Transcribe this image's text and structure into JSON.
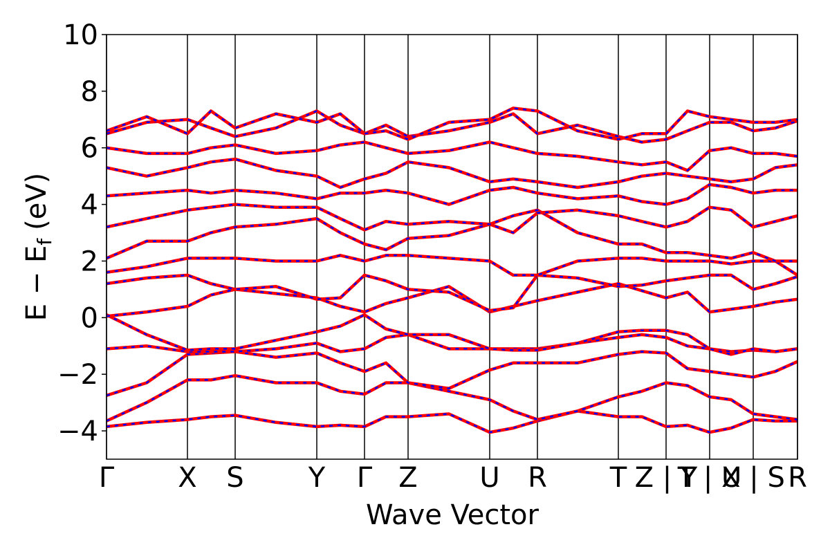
{
  "chart_data": {
    "type": "line",
    "xlabel": "Wave Vector",
    "ylabel": {
      "main": "E − E",
      "sub": "f",
      "unit": "(eV)"
    },
    "xlim": [
      0,
      999
    ],
    "ylim": [
      -5,
      10
    ],
    "xticks": [
      {
        "value": 0,
        "label": "Γ"
      },
      {
        "value": 117,
        "label": "X"
      },
      {
        "value": 186,
        "label": "S"
      },
      {
        "value": 304,
        "label": "Y"
      },
      {
        "value": 373,
        "label": "Γ"
      },
      {
        "value": 436,
        "label": "Z"
      },
      {
        "value": 554,
        "label": "U"
      },
      {
        "value": 623,
        "label": "R"
      },
      {
        "value": 740,
        "label": "T"
      },
      {
        "value": 809,
        "label": "Z | Y"
      },
      {
        "value": 872,
        "label": "T | U"
      },
      {
        "value": 935,
        "label": "X | S"
      },
      {
        "value": 999,
        "label": "R"
      }
    ],
    "yticks": [
      {
        "value": -4,
        "label": "−4"
      },
      {
        "value": -2,
        "label": "−2"
      },
      0,
      2,
      4,
      6,
      8,
      10
    ],
    "x": [
      0,
      58,
      117,
      151,
      186,
      245,
      304,
      338,
      373,
      404,
      436,
      495,
      554,
      588,
      623,
      681,
      740,
      774,
      809,
      840,
      872,
      903,
      935,
      967,
      999
    ],
    "line_color": "#ff0000",
    "overlay_color": "#0000ff",
    "series": [
      {
        "values": [
          -3.85,
          -3.7,
          -3.6,
          -3.5,
          -3.45,
          -3.7,
          -3.85,
          -3.8,
          -3.85,
          -3.5,
          -3.5,
          -3.4,
          -4.05,
          -3.9,
          -3.65,
          -3.3,
          -3.5,
          -3.5,
          -3.85,
          -3.8,
          -4.05,
          -3.9,
          -3.6,
          -3.65,
          -3.65
        ]
      },
      {
        "values": [
          -3.65,
          -3.0,
          -2.2,
          -2.2,
          -2.05,
          -2.3,
          -2.3,
          -2.6,
          -2.7,
          -2.3,
          -2.3,
          -2.6,
          -2.9,
          -3.3,
          -3.6,
          -3.3,
          -2.8,
          -2.6,
          -2.3,
          -2.4,
          -2.8,
          -2.9,
          -3.4,
          -3.5,
          -3.6
        ]
      },
      {
        "values": [
          -2.75,
          -2.3,
          -1.3,
          -1.25,
          -1.2,
          -1.4,
          -1.25,
          -1.6,
          -1.9,
          -1.6,
          -2.3,
          -2.5,
          -1.85,
          -1.6,
          -1.6,
          -1.6,
          -1.3,
          -1.2,
          -1.25,
          -1.8,
          -1.9,
          -2.0,
          -2.1,
          -1.9,
          -1.55
        ]
      },
      {
        "values": [
          -1.1,
          -1.0,
          -1.2,
          -1.2,
          -1.2,
          -1.1,
          -0.9,
          -1.2,
          -1.1,
          -0.7,
          -0.6,
          -1.1,
          -1.1,
          -1.1,
          -1.1,
          -0.9,
          -0.7,
          -0.6,
          -0.7,
          -1.0,
          -1.1,
          -1.2,
          -1.15,
          -1.2,
          -1.1
        ]
      },
      {
        "values": [
          0.1,
          -0.6,
          -1.15,
          -1.1,
          -1.1,
          -0.8,
          -0.5,
          -0.3,
          0.1,
          -0.4,
          -0.6,
          -0.6,
          -1.1,
          -1.15,
          -1.15,
          -0.9,
          -0.5,
          -0.45,
          -0.45,
          -0.6,
          -1.1,
          -1.3,
          -1.1,
          -1.2,
          -1.1
        ]
      },
      {
        "values": [
          0.05,
          0.2,
          0.4,
          0.8,
          1.0,
          0.85,
          0.7,
          0.4,
          0.2,
          0.5,
          0.7,
          1.1,
          0.2,
          0.4,
          0.6,
          0.9,
          1.2,
          0.95,
          0.7,
          0.9,
          0.2,
          0.3,
          0.4,
          0.55,
          0.65
        ]
      },
      {
        "values": [
          1.2,
          1.4,
          1.5,
          1.2,
          1.0,
          1.1,
          0.65,
          0.7,
          1.5,
          1.3,
          1.0,
          0.9,
          0.25,
          0.35,
          1.5,
          1.4,
          1.1,
          1.15,
          1.3,
          1.4,
          1.5,
          1.5,
          1.0,
          1.2,
          1.45
        ]
      },
      {
        "values": [
          1.6,
          1.8,
          2.1,
          2.1,
          2.1,
          2.0,
          2.0,
          2.2,
          2.0,
          2.2,
          2.2,
          2.1,
          2.0,
          1.5,
          1.5,
          2.0,
          2.1,
          2.1,
          2.0,
          2.0,
          2.0,
          1.9,
          2.0,
          2.0,
          1.5
        ]
      },
      {
        "values": [
          2.1,
          2.7,
          2.7,
          3.0,
          3.2,
          3.3,
          3.5,
          3.0,
          2.6,
          2.4,
          2.8,
          2.9,
          3.3,
          3.6,
          3.8,
          3.0,
          2.6,
          2.6,
          2.3,
          2.3,
          2.2,
          2.1,
          2.3,
          2.0,
          2.0
        ]
      },
      {
        "values": [
          3.2,
          3.5,
          3.8,
          3.9,
          4.0,
          3.9,
          3.9,
          3.5,
          3.1,
          3.4,
          3.3,
          3.4,
          3.3,
          3.0,
          3.7,
          3.8,
          3.6,
          3.4,
          3.2,
          3.4,
          3.9,
          3.8,
          3.2,
          3.4,
          3.6
        ]
      },
      {
        "values": [
          4.3,
          4.4,
          4.5,
          4.4,
          4.5,
          4.4,
          4.2,
          4.4,
          4.4,
          4.5,
          4.4,
          4.0,
          4.5,
          4.6,
          4.4,
          4.2,
          4.3,
          4.1,
          4.0,
          4.2,
          4.7,
          4.6,
          4.4,
          4.5,
          4.5
        ]
      },
      {
        "values": [
          5.3,
          5.0,
          5.3,
          5.5,
          5.6,
          5.2,
          5.0,
          4.6,
          4.9,
          5.1,
          5.5,
          5.3,
          4.8,
          4.9,
          4.8,
          4.6,
          4.8,
          5.0,
          5.1,
          5.0,
          4.9,
          4.8,
          4.9,
          5.3,
          5.4
        ]
      },
      {
        "values": [
          6.0,
          5.8,
          5.8,
          6.0,
          6.1,
          5.8,
          5.9,
          6.1,
          6.2,
          6.0,
          5.8,
          5.9,
          6.2,
          6.0,
          5.8,
          5.7,
          5.5,
          5.4,
          5.5,
          5.2,
          5.9,
          6.0,
          5.8,
          5.8,
          5.7
        ]
      },
      {
        "values": [
          6.5,
          6.9,
          7.0,
          6.7,
          6.4,
          6.7,
          7.3,
          6.8,
          6.5,
          6.8,
          6.4,
          6.6,
          6.9,
          7.2,
          6.5,
          6.8,
          6.4,
          6.2,
          6.3,
          6.6,
          6.9,
          6.9,
          6.6,
          6.7,
          6.95
        ]
      },
      {
        "values": [
          6.6,
          7.1,
          6.5,
          7.3,
          6.7,
          7.2,
          6.9,
          7.2,
          6.5,
          6.6,
          6.3,
          6.9,
          7.0,
          7.4,
          7.3,
          6.6,
          6.3,
          6.5,
          6.5,
          7.3,
          7.1,
          7.0,
          6.9,
          6.9,
          7.0
        ]
      }
    ]
  }
}
